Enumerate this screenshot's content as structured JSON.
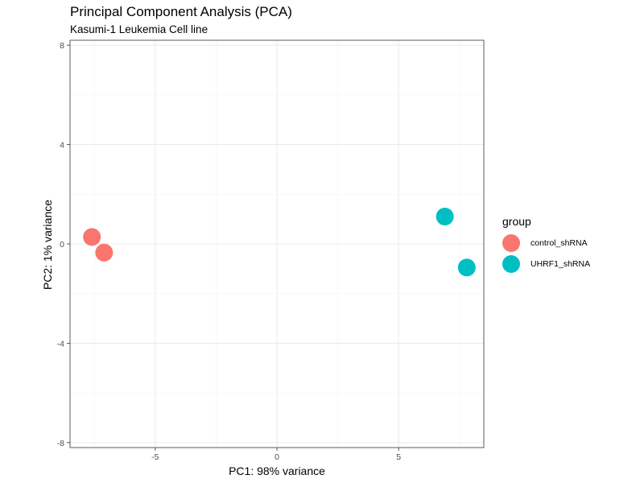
{
  "chart_data": {
    "type": "scatter",
    "title": "Principal Component Analysis (PCA)",
    "subtitle": "Kasumi-1 Leukemia Cell line",
    "xlabel": "PC1: 98% variance",
    "ylabel": "PC2: 1% variance",
    "xlim": [
      -8.5,
      8.5
    ],
    "ylim": [
      -8.2,
      8.2
    ],
    "xticks": [
      -5,
      0,
      5
    ],
    "yticks": [
      -8,
      -4,
      0,
      4,
      8
    ],
    "grid": true,
    "legend": {
      "title": "group",
      "placement": "right"
    },
    "series": [
      {
        "name": "control_shRNA",
        "color": "#F8766D",
        "points": [
          {
            "x": -7.6,
            "y": 0.28
          },
          {
            "x": -7.1,
            "y": -0.35
          }
        ]
      },
      {
        "name": "UHRF1_shRNA",
        "color": "#00BFC4",
        "points": [
          {
            "x": 6.9,
            "y": 1.1
          },
          {
            "x": 7.8,
            "y": -0.95
          }
        ]
      }
    ]
  }
}
